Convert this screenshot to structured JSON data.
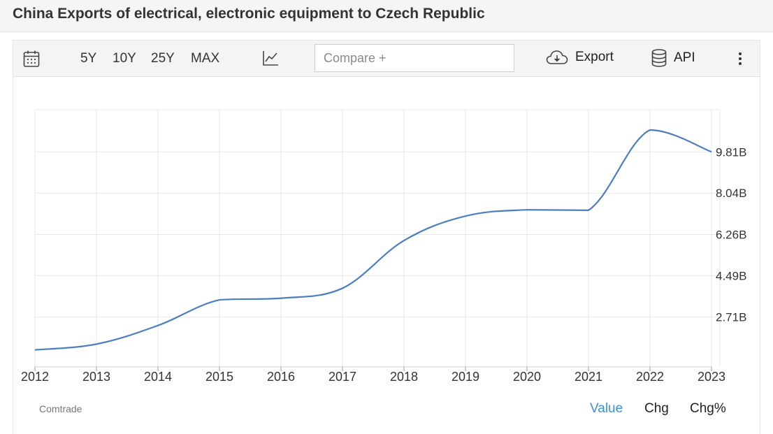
{
  "page_title": "China Exports of electrical, electronic equipment to Czech Republic",
  "toolbar": {
    "calendar_icon": "calendar-icon",
    "ranges": [
      "5Y",
      "10Y",
      "25Y",
      "MAX"
    ],
    "chart_type_icon": "line-chart-icon",
    "compare_placeholder": "Compare +",
    "export_icon": "cloud-download-icon",
    "export_label": "Export",
    "api_icon": "database-icon",
    "api_label": "API",
    "more_icon": "vertical-dots-icon"
  },
  "footer": {
    "source": "Comtrade",
    "tabs": [
      "Value",
      "Chg",
      "Chg%"
    ],
    "active_tab": "Value"
  },
  "colors": {
    "line": "#4a7ebf",
    "active_tab": "#3a8fd8",
    "grid": "#e9e9e9"
  },
  "chart_data": {
    "type": "line",
    "title": "China Exports of electrical, electronic equipment to Czech Republic",
    "x": [
      "2012",
      "2013",
      "2014",
      "2015",
      "2016",
      "2017",
      "2018",
      "2019",
      "2020",
      "2021",
      "2022",
      "2023"
    ],
    "series": [
      {
        "values": [
          1.3,
          1.55,
          2.35,
          3.45,
          3.52,
          3.95,
          6.0,
          7.05,
          7.32,
          7.3,
          10.75,
          9.81
        ]
      }
    ],
    "y_ticks": [
      2.71,
      4.49,
      6.26,
      8.04,
      9.81
    ],
    "y_tick_labels": [
      "2.71B",
      "4.49B",
      "6.26B",
      "8.04B",
      "9.81B"
    ],
    "x_tick_labels": [
      "2012",
      "2013",
      "2014",
      "2015",
      "2016",
      "2017",
      "2018",
      "2019",
      "2020",
      "2021",
      "2022",
      "2023"
    ],
    "ylim": [
      0.57,
      11.62
    ],
    "y_axis_position": "right",
    "grid": true,
    "legend": "none"
  }
}
